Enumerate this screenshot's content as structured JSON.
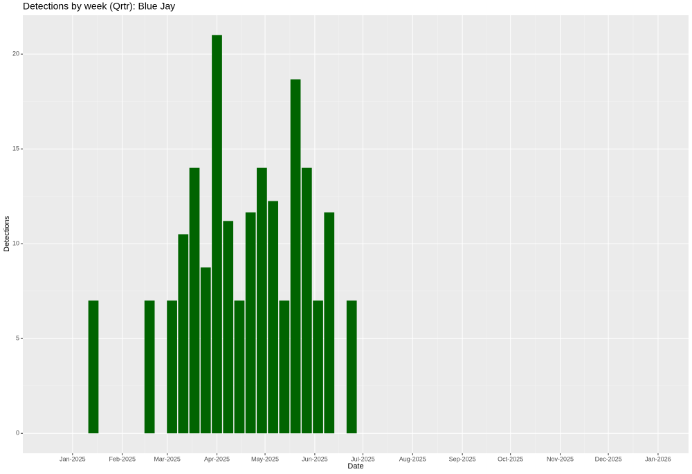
{
  "chart_data": {
    "type": "bar",
    "title": "Detections by week (Qrtr): Blue Jay",
    "x_label": "Date",
    "y_label": "Detections",
    "x": [
      "2025-01-14",
      "2025-02-18",
      "2025-03-04",
      "2025-03-11",
      "2025-03-18",
      "2025-03-25",
      "2025-04-01",
      "2025-04-08",
      "2025-04-15",
      "2025-04-22",
      "2025-04-29",
      "2025-05-06",
      "2025-05-13",
      "2025-05-20",
      "2025-05-27",
      "2025-06-03",
      "2025-06-10",
      "2025-06-24"
    ],
    "values": [
      7,
      7,
      7,
      10.5,
      14,
      8.75,
      21,
      11.2,
      7,
      11.65,
      14,
      12.25,
      7,
      18.67,
      14,
      7,
      11.65,
      7
    ],
    "color": "#006400",
    "xlim": [
      "2024-12-01",
      "2026-01-20"
    ],
    "xticks": [
      {
        "value": "2025-01-01",
        "label": "Jan-2025"
      },
      {
        "value": "2025-02-01",
        "label": "Feb-2025"
      },
      {
        "value": "2025-03-01",
        "label": "Mar-2025"
      },
      {
        "value": "2025-04-01",
        "label": "Apr-2025"
      },
      {
        "value": "2025-05-01",
        "label": "May-2025"
      },
      {
        "value": "2025-06-01",
        "label": "Jun-2025"
      },
      {
        "value": "2025-07-01",
        "label": "Jul-2025"
      },
      {
        "value": "2025-08-01",
        "label": "Aug-2025"
      },
      {
        "value": "2025-09-01",
        "label": "Sep-2025"
      },
      {
        "value": "2025-10-01",
        "label": "Oct-2025"
      },
      {
        "value": "2025-11-01",
        "label": "Nov-2025"
      },
      {
        "value": "2025-12-01",
        "label": "Dec-2025"
      },
      {
        "value": "2026-01-01",
        "label": "Jan-2026"
      }
    ],
    "ylim": [
      -1.05,
      22.05
    ],
    "yticks": [
      0,
      5,
      10,
      15,
      20
    ],
    "grid": true
  }
}
